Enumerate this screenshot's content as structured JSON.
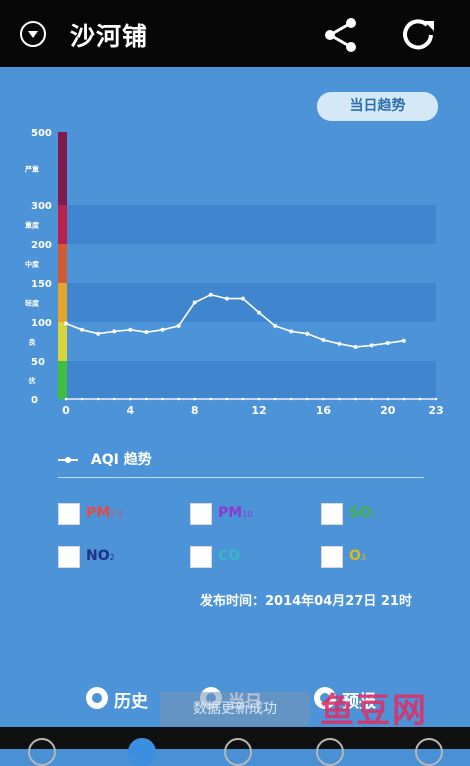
{
  "header": {
    "city": "沙河铺"
  },
  "trend_button": "当日趋势",
  "chart_data": {
    "type": "line",
    "x": [
      0,
      1,
      2,
      3,
      4,
      5,
      6,
      7,
      8,
      9,
      10,
      11,
      12,
      13,
      14,
      15,
      16,
      17,
      18,
      19,
      20,
      21
    ],
    "values": [
      98,
      90,
      85,
      88,
      90,
      87,
      90,
      95,
      125,
      135,
      130,
      130,
      112,
      95,
      88,
      85,
      77,
      72,
      68,
      70,
      73,
      76
    ],
    "xlim": [
      0,
      23
    ],
    "xticks": [
      0,
      4,
      8,
      12,
      16,
      20,
      23
    ],
    "yticks": [
      0,
      50,
      100,
      150,
      200,
      300,
      500
    ],
    "bands": [
      {
        "label": "优",
        "from": 0,
        "to": 50,
        "color": "#3fbe3f"
      },
      {
        "label": "良",
        "from": 50,
        "to": 100,
        "color": "#d8d43c"
      },
      {
        "label": "轻度",
        "from": 100,
        "to": 150,
        "color": "#e7a42a"
      },
      {
        "label": "中度",
        "from": 150,
        "to": 200,
        "color": "#d35b33"
      },
      {
        "label": "重度",
        "from": 200,
        "to": 300,
        "color": "#b9204a"
      },
      {
        "label": "严重",
        "from": 300,
        "to": 500,
        "color": "#7f1a4f"
      }
    ],
    "legend": "AQI 趋势"
  },
  "pollutants": [
    {
      "main": "PM",
      "sub": "2.5",
      "color": "#e34b4b"
    },
    {
      "main": "PM",
      "sub": "10",
      "color": "#8b3ad0"
    },
    {
      "main": "SO",
      "sub": "2",
      "color": "#43b54a"
    },
    {
      "main": "NO",
      "sub": "2",
      "color": "#1f2f8a"
    },
    {
      "main": "CO",
      "sub": "",
      "color": "#35b9c9"
    },
    {
      "main": "O",
      "sub": "3",
      "color": "#d8b91e"
    }
  ],
  "publish_time": "发布时间：2014年04月27日 21时",
  "tabs": [
    {
      "label": "历史"
    },
    {
      "label": "当日"
    },
    {
      "label": "预报"
    }
  ],
  "toast": "数据更新成功",
  "watermark": "鱼豆网"
}
